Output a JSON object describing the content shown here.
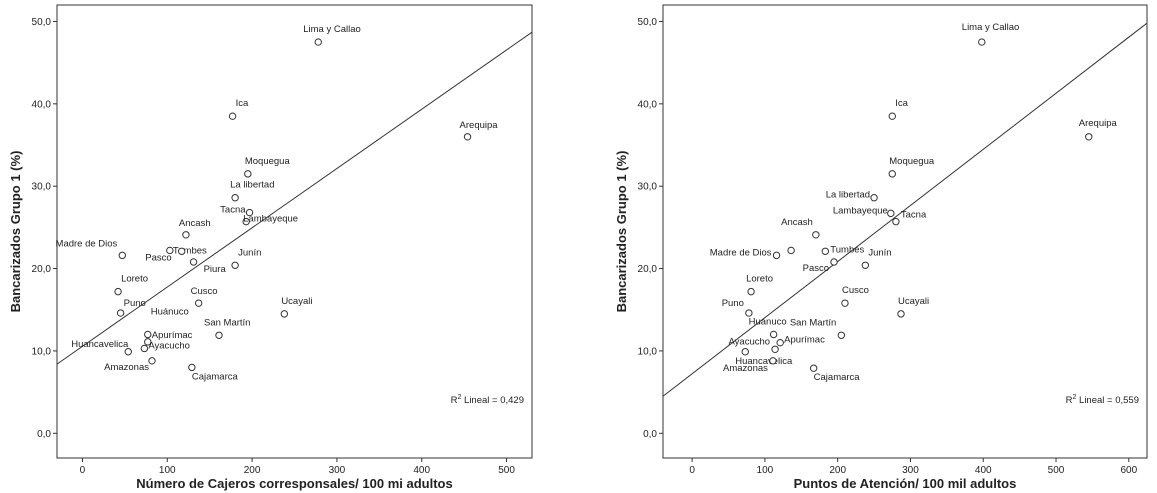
{
  "chart_data": [
    {
      "type": "scatter",
      "xlabel": "Número de Cajeros corresponsales/ 100 mi adultos",
      "ylabel": "Bancarizados Grupo 1 (%)",
      "xlim": [
        -30,
        530
      ],
      "ylim": [
        -3,
        52
      ],
      "xticks": [
        0,
        100,
        200,
        300,
        400,
        500
      ],
      "xtick_labels": [
        "0",
        "100",
        "200",
        "300",
        "400",
        "500"
      ],
      "yticks": [
        0,
        10,
        20,
        30,
        40,
        50
      ],
      "ytick_labels": [
        "0,0",
        "10,0",
        "20,0",
        "30,0",
        "40,0",
        "50,0"
      ],
      "r2_prefix": "R",
      "r2_sup": "2",
      "r2_text": " Lineal = 0,429",
      "fit_line": {
        "x": [
          -30,
          530
        ],
        "y": [
          8.4,
          48.7
        ]
      },
      "points": [
        {
          "label": "Lima y Callao",
          "x": 278,
          "y": 47.5
        },
        {
          "label": "Arequipa",
          "x": 454,
          "y": 36.0
        },
        {
          "label": "Ica",
          "x": 177,
          "y": 38.5
        },
        {
          "label": "Moquegua",
          "x": 195,
          "y": 31.5
        },
        {
          "label": "La libertad",
          "x": 180,
          "y": 28.6
        },
        {
          "label": "Tacna",
          "x": 197,
          "y": 26.8
        },
        {
          "label": "Lambayeque",
          "x": 193,
          "y": 25.7
        },
        {
          "label": "Ancash",
          "x": 122,
          "y": 24.1
        },
        {
          "label": "Madre de Dios",
          "x": 47,
          "y": 21.6
        },
        {
          "label": "Tumbes",
          "x": 103,
          "y": 22.2
        },
        {
          "label": "Pasco",
          "x": 117,
          "y": 22.1
        },
        {
          "label": "Piura",
          "x": 131,
          "y": 20.8
        },
        {
          "label": "Junín",
          "x": 180,
          "y": 20.4
        },
        {
          "label": "Loreto",
          "x": 42,
          "y": 17.2
        },
        {
          "label": "Puno",
          "x": 45,
          "y": 14.6
        },
        {
          "label": "Huánuco",
          "x": 77,
          "y": 12.0
        },
        {
          "label": "Cusco",
          "x": 137,
          "y": 15.8
        },
        {
          "label": "Ucayali",
          "x": 238,
          "y": 14.5
        },
        {
          "label": "San Martín",
          "x": 161,
          "y": 11.9
        },
        {
          "label": "Apurímac",
          "x": 77,
          "y": 11.1
        },
        {
          "label": "Ayacucho",
          "x": 73,
          "y": 10.3
        },
        {
          "label": "Huancavelica",
          "x": 54,
          "y": 9.9
        },
        {
          "label": "Amazonas",
          "x": 82,
          "y": 8.8
        },
        {
          "label": "Cajamarca",
          "x": 129,
          "y": 8.0
        }
      ]
    },
    {
      "type": "scatter",
      "xlabel": "Puntos de Atención/ 100 mil adultos",
      "ylabel": "Bancarizados Grupo 1 (%)",
      "xlim": [
        -40,
        625
      ],
      "ylim": [
        -3,
        52
      ],
      "xticks": [
        0,
        100,
        200,
        300,
        400,
        500,
        600
      ],
      "xtick_labels": [
        "0",
        "100",
        "200",
        "300",
        "400",
        "500",
        "600"
      ],
      "yticks": [
        0,
        10,
        20,
        30,
        40,
        50
      ],
      "ytick_labels": [
        "0,0",
        "10,0",
        "20,0",
        "30,0",
        "40,0",
        "50,0"
      ],
      "r2_prefix": "R",
      "r2_sup": "2",
      "r2_text": " Lineal = 0,559",
      "fit_line": {
        "x": [
          -40,
          625
        ],
        "y": [
          4.5,
          49.8
        ]
      },
      "points": [
        {
          "label": "Lima y Callao",
          "x": 398,
          "y": 47.5
        },
        {
          "label": "Arequipa",
          "x": 545,
          "y": 36.0
        },
        {
          "label": "Ica",
          "x": 275,
          "y": 38.5
        },
        {
          "label": "Moquegua",
          "x": 275,
          "y": 31.5
        },
        {
          "label": "La libertad",
          "x": 250,
          "y": 28.6
        },
        {
          "label": "Lambayeque",
          "x": 273,
          "y": 26.7
        },
        {
          "label": "Tacna",
          "x": 280,
          "y": 25.7
        },
        {
          "label": "Ancash",
          "x": 170,
          "y": 24.1
        },
        {
          "label": "Tumbes",
          "x": 183,
          "y": 22.1
        },
        {
          "label": "Madre de Dios",
          "x": 116,
          "y": 21.6
        },
        {
          "label": "Madre de Dios (b)",
          "x": 136,
          "y": 22.2,
          "hide_label": true
        },
        {
          "label": "Pasco",
          "x": 195,
          "y": 20.8
        },
        {
          "label": "Junín",
          "x": 238,
          "y": 20.4
        },
        {
          "label": "Loreto",
          "x": 81,
          "y": 17.2
        },
        {
          "label": "Puno",
          "x": 78,
          "y": 14.6
        },
        {
          "label": "Cusco",
          "x": 210,
          "y": 15.8
        },
        {
          "label": "Ucayali",
          "x": 287,
          "y": 14.5
        },
        {
          "label": "Huánuco",
          "x": 112,
          "y": 12.0
        },
        {
          "label": "San Martín",
          "x": 205,
          "y": 11.9
        },
        {
          "label": "Apurímac",
          "x": 121,
          "y": 11.0
        },
        {
          "label": "Ayacucho",
          "x": 114,
          "y": 10.2
        },
        {
          "label": "Huancavelica",
          "x": 73,
          "y": 9.9
        },
        {
          "label": "Amazonas",
          "x": 111,
          "y": 8.8
        },
        {
          "label": "Cajamarca",
          "x": 167,
          "y": 7.9
        }
      ]
    }
  ]
}
